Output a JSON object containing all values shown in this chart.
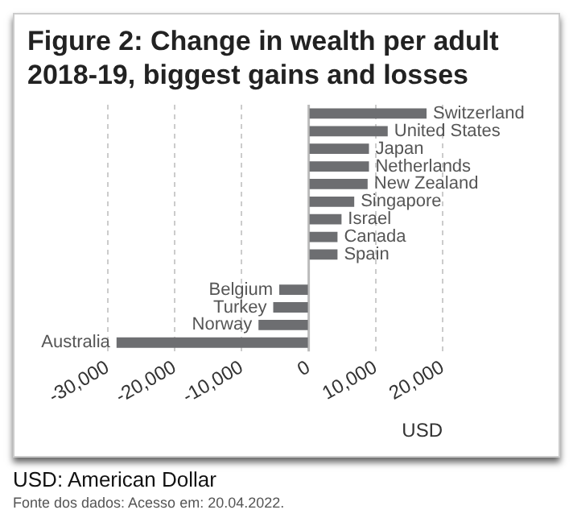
{
  "chart_data": {
    "type": "bar",
    "orientation": "horizontal",
    "title": "Figure 2: Change in wealth per adult 2018-19, biggest gains and losses",
    "categories": [
      "Switzerland",
      "United States",
      "Japan",
      "Netherlands",
      "New Zealand",
      "Singapore",
      "Israel",
      "Canada",
      "Spain",
      null,
      "Belgium",
      "Turkey",
      "Norway",
      "Australia"
    ],
    "values": [
      17600,
      11800,
      9000,
      9000,
      8800,
      6800,
      4900,
      4300,
      4300,
      null,
      -4400,
      -5300,
      -7500,
      -28700
    ],
    "color": "#6d6e71",
    "xlim": [
      -30000,
      20000
    ],
    "xticks": [
      {
        "value": -30000,
        "label": "-30,000"
      },
      {
        "value": -20000,
        "label": "-20,000"
      },
      {
        "value": -10000,
        "label": "-10,000"
      },
      0,
      {
        "value": 10000,
        "label": "10,000"
      },
      {
        "value": 20000,
        "label": "20,000"
      }
    ],
    "xlabel": "USD",
    "grid": "x",
    "tick_labels": "x",
    "legend": false,
    "ref_lines": [
      {
        "axis": "x",
        "value": 0,
        "color": "#bbbbbb"
      }
    ],
    "annotations": [
      "USD: American Dollar",
      "Fonte dos dados: Acesso em: 20.04.2022."
    ]
  }
}
